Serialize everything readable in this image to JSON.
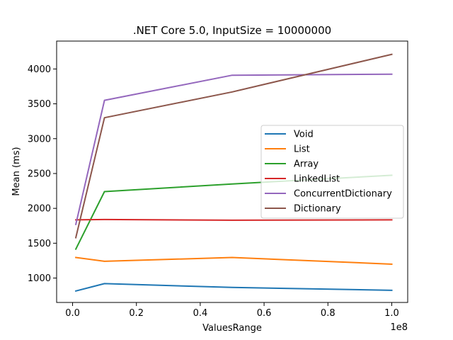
{
  "chart_data": {
    "type": "line",
    "title": ".NET Core 5.0, InputSize = 10000000",
    "xlabel": "ValuesRange",
    "ylabel": "Mean (ms)",
    "x_offset_label": "1e8",
    "x": [
      1000000,
      10000000,
      50000000,
      100000000
    ],
    "xlim": [
      -5000000,
      105000000
    ],
    "ylim": [
      650,
      4400
    ],
    "x_ticks": [
      0,
      20000000,
      40000000,
      60000000,
      80000000,
      100000000
    ],
    "x_tick_labels": [
      "0.0",
      "0.2",
      "0.4",
      "0.6",
      "0.8",
      "1.0"
    ],
    "y_ticks": [
      1000,
      1500,
      2000,
      2500,
      3000,
      3500,
      4000
    ],
    "y_tick_labels": [
      "1000",
      "1500",
      "2000",
      "2500",
      "3000",
      "3500",
      "4000"
    ],
    "grid": false,
    "legend_position": "center-right",
    "series": [
      {
        "name": "Void",
        "color": "#1f77b4",
        "values": [
          815,
          920,
          865,
          825
        ]
      },
      {
        "name": "List",
        "color": "#ff7f0e",
        "values": [
          1295,
          1240,
          1295,
          1200
        ]
      },
      {
        "name": "Array",
        "color": "#2ca02c",
        "values": [
          1415,
          2240,
          2350,
          2475
        ]
      },
      {
        "name": "LinkedList",
        "color": "#d62728",
        "values": [
          1835,
          1840,
          1830,
          1835
        ]
      },
      {
        "name": "ConcurrentDictionary",
        "color": "#9467bd",
        "values": [
          1770,
          3550,
          3910,
          3925
        ]
      },
      {
        "name": "Dictionary",
        "color": "#8c564b",
        "values": [
          1580,
          3300,
          3670,
          4210
        ]
      }
    ]
  }
}
